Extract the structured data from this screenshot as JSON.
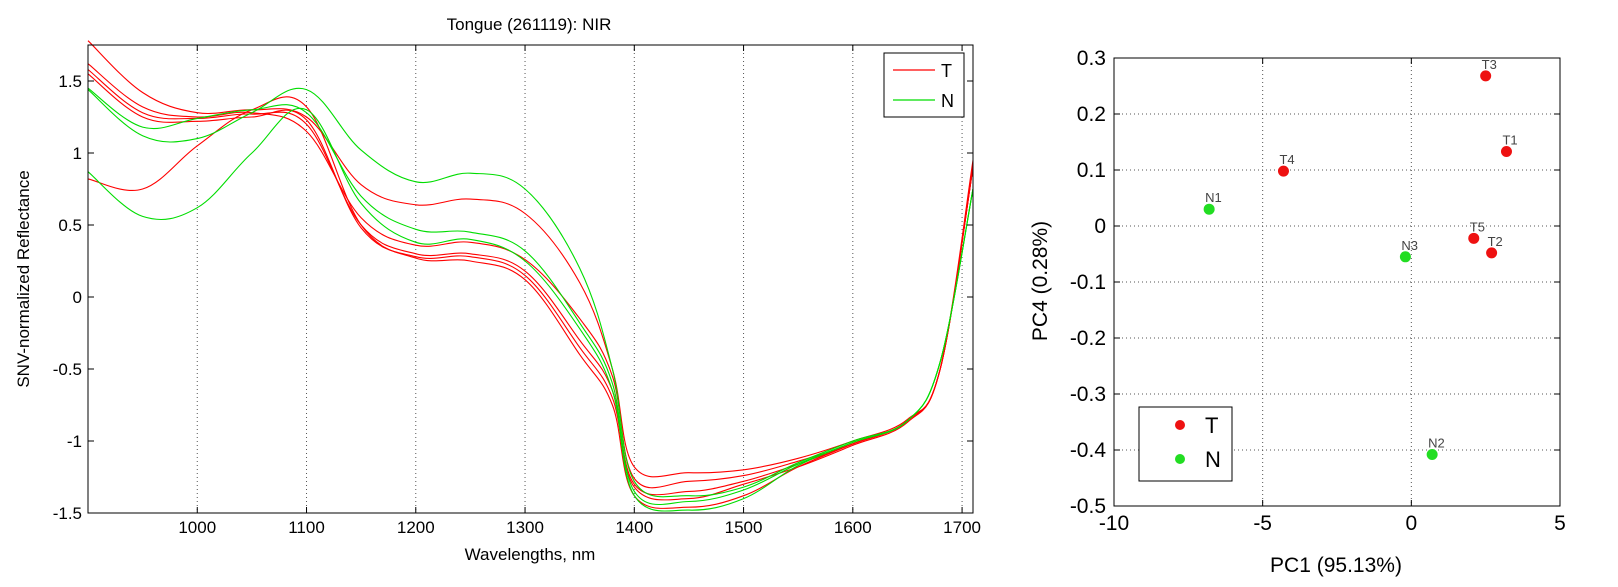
{
  "chart_data": [
    {
      "type": "line",
      "title": "Tongue (261119): NIR",
      "xlabel": "Wavelengths, nm",
      "ylabel": "SNV-normalized Reflectance",
      "xlim": [
        900,
        1710
      ],
      "ylim": [
        -1.5,
        1.75
      ],
      "xticks": [
        1000,
        1100,
        1200,
        1300,
        1400,
        1500,
        1600,
        1700
      ],
      "xtick_labels": [
        "1000",
        "1100",
        "1200",
        "1300",
        "1400",
        "1500",
        "1600",
        "1700"
      ],
      "yticks": [
        -1.5,
        -1,
        -0.5,
        0,
        0.5,
        1,
        1.5
      ],
      "ytick_labels": [
        "-1.5",
        "-1",
        "-0.5",
        "0",
        "0.5",
        "1",
        "1.5"
      ],
      "grid": "x-dotted",
      "legend_position": "top-right",
      "legend": [
        {
          "label": "T",
          "color": "#ff0000"
        },
        {
          "label": "N",
          "color": "#00dd00"
        }
      ],
      "x": [
        900,
        950,
        1000,
        1050,
        1100,
        1150,
        1200,
        1250,
        1300,
        1350,
        1380,
        1400,
        1450,
        1500,
        1550,
        1600,
        1650,
        1680,
        1710
      ],
      "series": [
        {
          "group": "T",
          "color": "#ff0000",
          "values": [
            1.78,
            1.42,
            1.28,
            1.3,
            1.25,
            0.78,
            0.64,
            0.68,
            0.58,
            0.1,
            -0.5,
            -1.18,
            -1.22,
            -1.2,
            -1.12,
            -1.0,
            -0.85,
            -0.5,
            0.95
          ]
        },
        {
          "group": "T",
          "color": "#ff0000",
          "values": [
            1.62,
            1.32,
            1.25,
            1.28,
            1.15,
            0.55,
            0.36,
            0.38,
            0.26,
            -0.15,
            -0.55,
            -1.26,
            -1.28,
            -1.24,
            -1.14,
            -1.02,
            -0.86,
            -0.5,
            0.9
          ]
        },
        {
          "group": "T",
          "color": "#ff0000",
          "values": [
            1.58,
            1.28,
            1.24,
            1.27,
            1.2,
            0.5,
            0.3,
            0.3,
            0.18,
            -0.3,
            -0.65,
            -1.3,
            -1.35,
            -1.28,
            -1.16,
            -1.02,
            -0.86,
            -0.5,
            0.9
          ]
        },
        {
          "group": "T",
          "color": "#ff0000",
          "values": [
            1.55,
            1.25,
            1.22,
            1.25,
            1.23,
            0.48,
            0.28,
            0.28,
            0.15,
            -0.35,
            -0.7,
            -1.32,
            -1.4,
            -1.3,
            -1.18,
            -1.03,
            -0.87,
            -0.5,
            0.9
          ]
        },
        {
          "group": "T",
          "color": "#ff0000",
          "values": [
            0.82,
            0.75,
            1.05,
            1.3,
            1.32,
            0.5,
            0.27,
            0.25,
            0.12,
            -0.4,
            -0.75,
            -1.38,
            -1.46,
            -1.38,
            -1.18,
            -1.02,
            -0.86,
            -0.5,
            0.9
          ]
        },
        {
          "group": "N",
          "color": "#00dd00",
          "values": [
            1.44,
            1.12,
            1.1,
            1.28,
            1.44,
            1.02,
            0.8,
            0.86,
            0.75,
            0.2,
            -0.5,
            -1.28,
            -1.38,
            -1.32,
            -1.15,
            -1.0,
            -0.86,
            -0.45,
            0.75
          ]
        },
        {
          "group": "N",
          "color": "#00dd00",
          "values": [
            1.45,
            1.18,
            1.24,
            1.3,
            1.28,
            0.7,
            0.47,
            0.45,
            0.32,
            -0.18,
            -0.6,
            -1.35,
            -1.42,
            -1.34,
            -1.16,
            -1.01,
            -0.86,
            -0.45,
            0.75
          ]
        },
        {
          "group": "N",
          "color": "#00dd00",
          "values": [
            0.87,
            0.56,
            0.62,
            1.0,
            1.3,
            0.65,
            0.38,
            0.4,
            0.25,
            -0.22,
            -0.65,
            -1.38,
            -1.48,
            -1.4,
            -1.17,
            -1.01,
            -0.86,
            -0.45,
            0.75
          ]
        }
      ]
    },
    {
      "type": "scatter",
      "title": "",
      "xlabel": "PC1 (95.13%)",
      "ylabel": "PC4 (0.28%)",
      "xlim": [
        -10,
        5
      ],
      "ylim": [
        -0.5,
        0.3
      ],
      "xticks": [
        -10,
        -5,
        0,
        5
      ],
      "xtick_labels": [
        "-10",
        "-5",
        "0",
        "5"
      ],
      "yticks": [
        -0.5,
        -0.4,
        -0.3,
        -0.2,
        -0.1,
        0,
        0.1,
        0.2,
        0.3
      ],
      "ytick_labels": [
        "-0.5",
        "-0.4",
        "-0.3",
        "-0.2",
        "-0.1",
        "0",
        "0.1",
        "0.2",
        "0.3"
      ],
      "grid": "both-dotted",
      "legend_position": "bottom-left",
      "legend": [
        {
          "label": "T",
          "color": "#ee1111"
        },
        {
          "label": "N",
          "color": "#22dd22"
        }
      ],
      "points": [
        {
          "label": "T3",
          "group": "T",
          "x": 2.5,
          "y": 0.268
        },
        {
          "label": "T1",
          "group": "T",
          "x": 3.2,
          "y": 0.133
        },
        {
          "label": "T4",
          "group": "T",
          "x": -4.3,
          "y": 0.098
        },
        {
          "label": "N1",
          "group": "N",
          "x": -6.8,
          "y": 0.03
        },
        {
          "label": "T5",
          "group": "T",
          "x": 2.1,
          "y": -0.022
        },
        {
          "label": "N3",
          "group": "N",
          "x": -0.2,
          "y": -0.055
        },
        {
          "label": "T2",
          "group": "T",
          "x": 2.7,
          "y": -0.048
        },
        {
          "label": "N2",
          "group": "N",
          "x": 0.7,
          "y": -0.408
        }
      ]
    }
  ]
}
